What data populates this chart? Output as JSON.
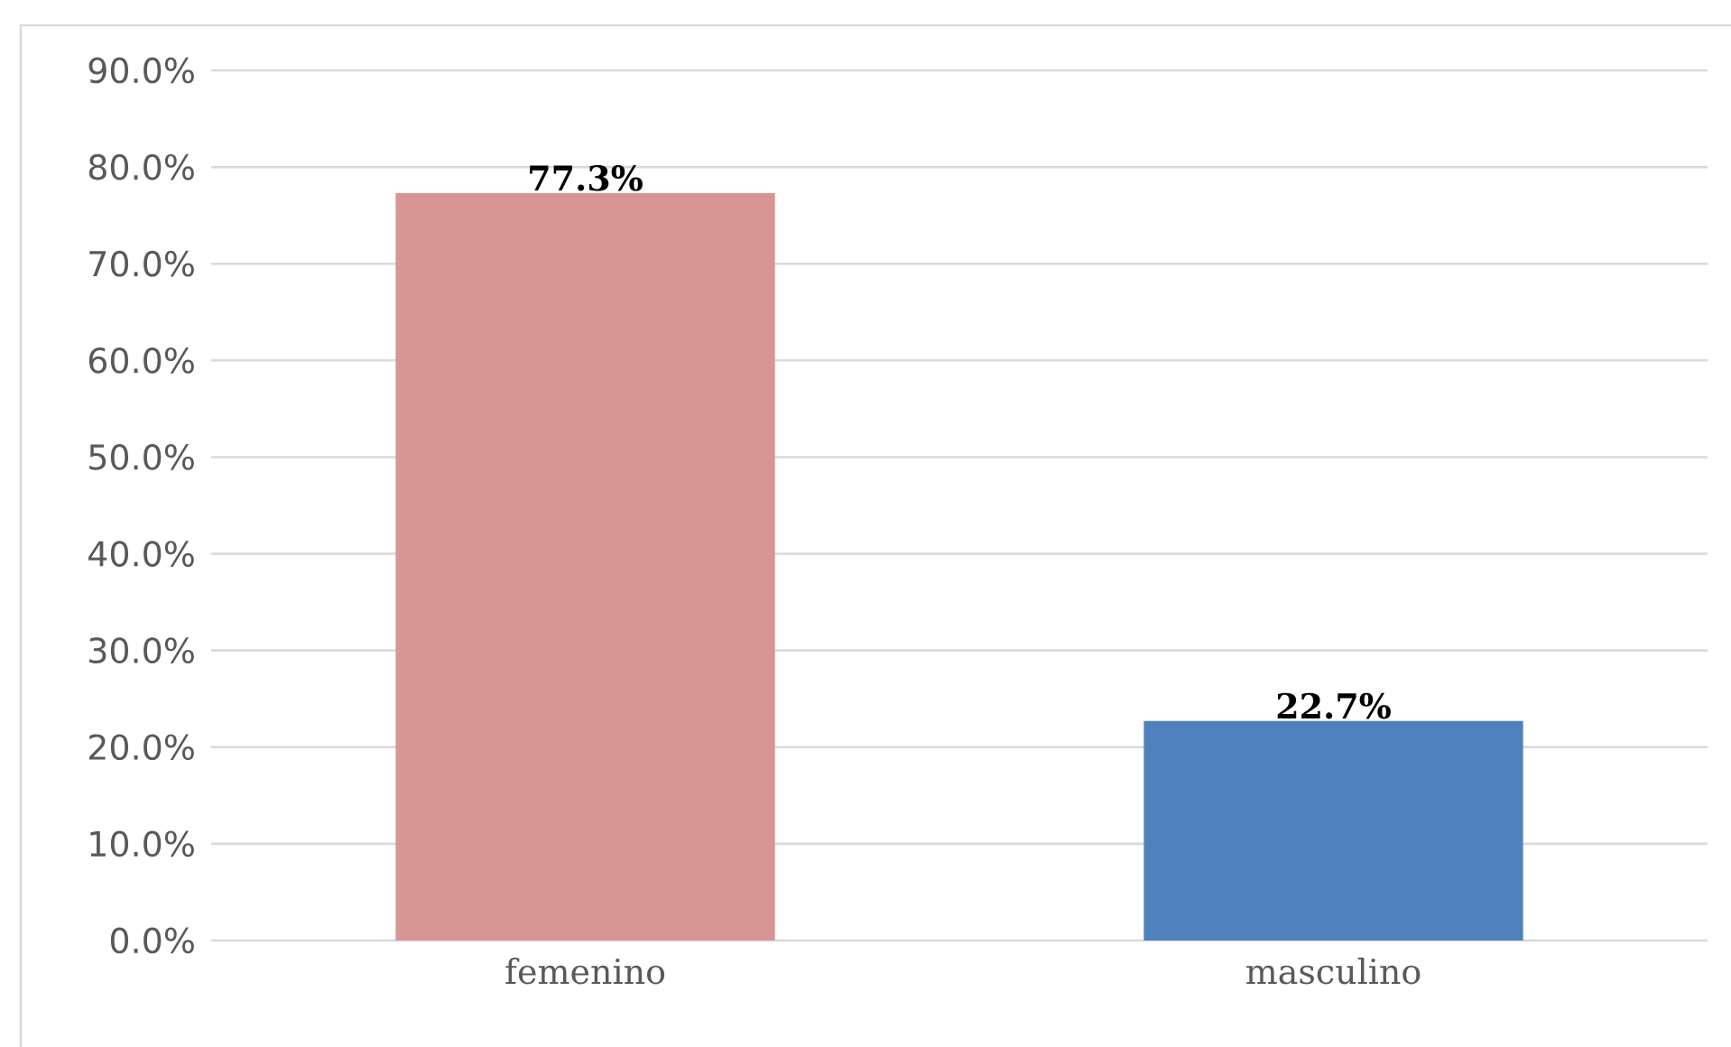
{
  "chart_data": {
    "type": "bar",
    "categories": [
      "femenino",
      "masculino"
    ],
    "values": [
      77.3,
      22.7
    ],
    "colors": [
      "#d99594",
      "#4f81bd"
    ],
    "ylim": [
      0,
      90
    ],
    "yticks": [
      {
        "value": 0,
        "label": "0.0%"
      },
      {
        "value": 10,
        "label": "10.0%"
      },
      {
        "value": 20,
        "label": "20.0%"
      },
      {
        "value": 30,
        "label": "30.0%"
      },
      {
        "value": 40,
        "label": "40.0%"
      },
      {
        "value": 50,
        "label": "50.0%"
      },
      {
        "value": 60,
        "label": "60.0%"
      },
      {
        "value": 70,
        "label": "70.0%"
      },
      {
        "value": 80,
        "label": "80.0%"
      },
      {
        "value": 90,
        "label": "90.0%"
      }
    ],
    "grid": "y",
    "value_labels": [
      "77.3%",
      "22.7%"
    ]
  }
}
